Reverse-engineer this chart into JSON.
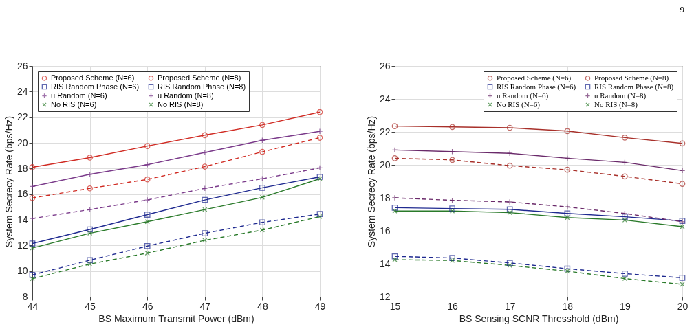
{
  "chart_data": [
    {
      "type": "line",
      "xlabel": "BS Maximum Transmit Power (dBm)",
      "ylabel": "System Secrecy Rate (bps/Hz)",
      "x": [
        44,
        45,
        46,
        47,
        48,
        49
      ],
      "xlim": [
        44,
        49
      ],
      "xticks": [
        44,
        45,
        46,
        47,
        48,
        49
      ],
      "ylim": [
        8,
        26
      ],
      "yticks": [
        8,
        10,
        12,
        14,
        16,
        18,
        20,
        22,
        24,
        26
      ],
      "grid": true,
      "legend": "top left",
      "series": [
        {
          "name": "Proposed Scheme (N=6)",
          "color": "#d02a22",
          "line_style": "dashed",
          "marker": "circle",
          "values": [
            15.7,
            16.45,
            17.15,
            18.15,
            19.3,
            20.4
          ]
        },
        {
          "name": "Proposed Scheme (N=8)",
          "color": "#d02a22",
          "line_style": "solid",
          "marker": "circle",
          "values": [
            18.1,
            18.85,
            19.75,
            20.6,
            21.4,
            22.4
          ]
        },
        {
          "name": "RIS Random Phase (N=6)",
          "color": "#1f2a90",
          "line_style": "dashed",
          "marker": "square",
          "values": [
            9.7,
            10.85,
            11.95,
            12.95,
            13.8,
            14.45
          ]
        },
        {
          "name": "RIS Random Phase (N=8)",
          "color": "#1f2a90",
          "line_style": "solid",
          "marker": "square",
          "values": [
            12.15,
            13.25,
            14.4,
            15.55,
            16.5,
            17.35
          ]
        },
        {
          "name": "u Random (N=6)",
          "color": "#7a3a8a",
          "line_style": "dashed",
          "marker": "cross",
          "values": [
            14.1,
            14.8,
            15.55,
            16.45,
            17.2,
            18.05
          ]
        },
        {
          "name": "u Random (N=8)",
          "color": "#7a3a8a",
          "line_style": "solid",
          "marker": "cross",
          "values": [
            16.6,
            17.55,
            18.3,
            19.25,
            20.2,
            20.9
          ]
        },
        {
          "name": "No RIS (N=6)",
          "color": "#2a7a2a",
          "line_style": "dashed",
          "marker": "x",
          "values": [
            9.4,
            10.55,
            11.4,
            12.4,
            13.2,
            14.25
          ]
        },
        {
          "name": "No RIS (N=8)",
          "color": "#2a7a2a",
          "line_style": "solid",
          "marker": "x",
          "values": [
            11.8,
            12.95,
            13.85,
            14.8,
            15.75,
            17.2
          ]
        }
      ]
    },
    {
      "type": "line",
      "xlabel": "BS Sensing SCNR Thresshold (dBm)",
      "ylabel": "System Secrecy Rate (bps/Hz)",
      "annotations": [
        "9"
      ],
      "x": [
        15,
        16,
        17,
        18,
        19,
        20
      ],
      "xlim": [
        15,
        20
      ],
      "xticks": [
        15,
        16,
        17,
        18,
        19,
        20
      ],
      "ylim": [
        12,
        26
      ],
      "yticks": [
        12,
        14,
        16,
        18,
        20,
        22,
        24,
        26
      ],
      "grid": true,
      "legend": "top right",
      "series": [
        {
          "name": "Proposed Scheme (N=6)",
          "color": "#a8302a",
          "line_style": "dashed",
          "marker": "circle",
          "values": [
            20.4,
            20.3,
            19.95,
            19.7,
            19.3,
            18.85
          ]
        },
        {
          "name": "Proposed Scheme (N=8)",
          "color": "#a8302a",
          "line_style": "solid",
          "marker": "circle",
          "values": [
            22.35,
            22.3,
            22.25,
            22.05,
            21.65,
            21.3
          ]
        },
        {
          "name": "RIS Random Phase (N=6)",
          "color": "#1f2a90",
          "line_style": "dashed",
          "marker": "square",
          "values": [
            14.45,
            14.35,
            14.05,
            13.7,
            13.4,
            13.15
          ]
        },
        {
          "name": "RIS Random Phase (N=8)",
          "color": "#1f2a90",
          "line_style": "solid",
          "marker": "square",
          "values": [
            17.4,
            17.35,
            17.3,
            17.05,
            16.85,
            16.6
          ]
        },
        {
          "name": "u Random (N=6)",
          "color": "#6a2a6a",
          "line_style": "dashed",
          "marker": "cross",
          "values": [
            18.0,
            17.85,
            17.75,
            17.45,
            17.05,
            16.55
          ]
        },
        {
          "name": "u Random (N=8)",
          "color": "#6a2a6a",
          "line_style": "solid",
          "marker": "cross",
          "values": [
            20.9,
            20.8,
            20.7,
            20.4,
            20.15,
            19.65
          ]
        },
        {
          "name": "No RIS (N=6)",
          "color": "#2a7a2a",
          "line_style": "dashed",
          "marker": "x",
          "values": [
            14.25,
            14.2,
            13.9,
            13.55,
            13.1,
            12.75
          ]
        },
        {
          "name": "No RIS (N=8)",
          "color": "#2a7a2a",
          "line_style": "solid",
          "marker": "x",
          "values": [
            17.2,
            17.2,
            17.1,
            16.8,
            16.65,
            16.25
          ]
        }
      ]
    }
  ]
}
